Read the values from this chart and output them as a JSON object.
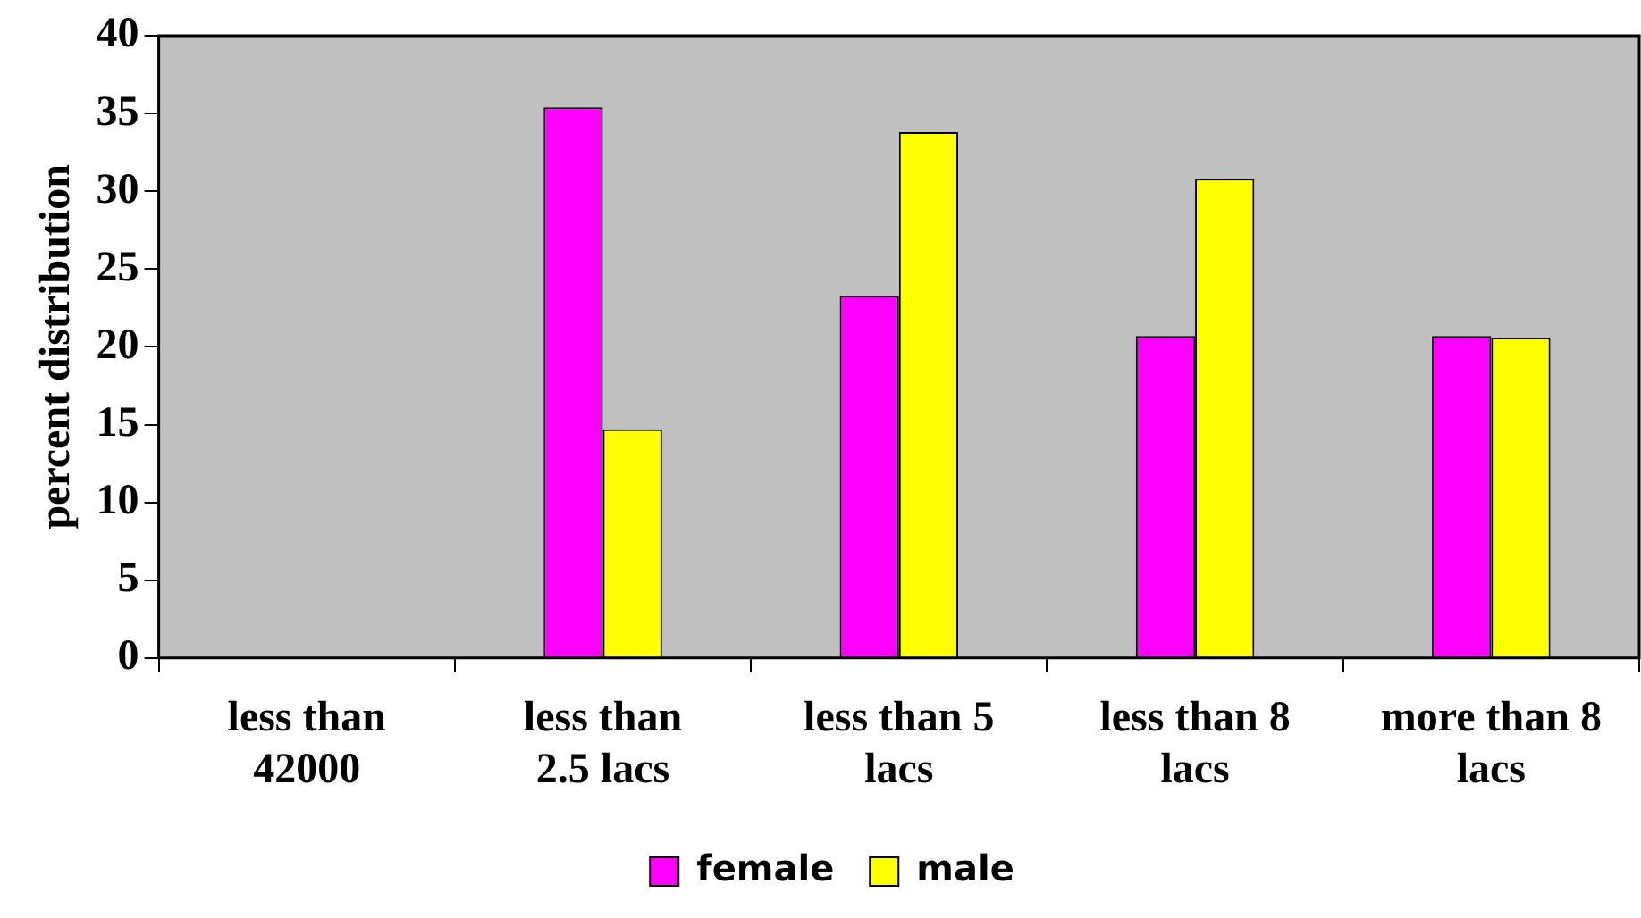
{
  "chart_data": {
    "type": "bar",
    "ylabel": "percent distribution",
    "categories": [
      "less than 42000",
      "less than 2.5 lacs",
      "less than 5 lacs",
      "less than 8 lacs",
      "more than 8 lacs"
    ],
    "series": [
      {
        "name": "female",
        "color": "#ff00ff",
        "values": [
          null,
          35.4,
          23.3,
          20.7,
          20.7
        ]
      },
      {
        "name": "male",
        "color": "#ffff00",
        "values": [
          null,
          14.7,
          33.8,
          30.8,
          20.6
        ]
      }
    ],
    "ylim": [
      0,
      40
    ],
    "yticks": [
      0,
      5,
      10,
      15,
      20,
      25,
      30,
      35,
      40
    ],
    "grid": false,
    "legend": "bottom"
  }
}
